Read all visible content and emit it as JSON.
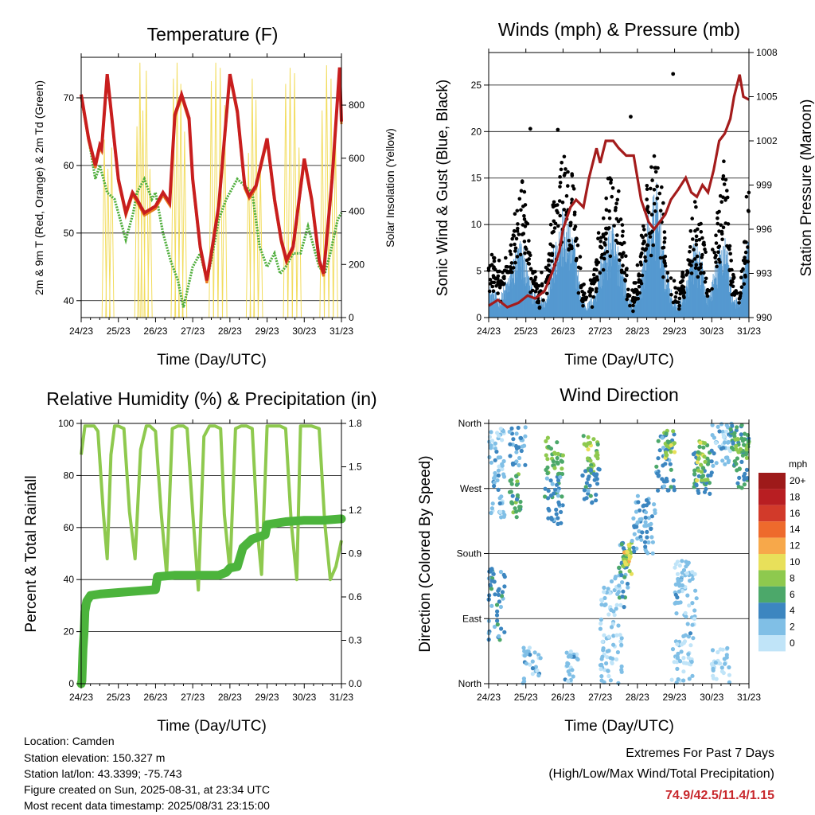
{
  "colors": {
    "temp_2m": "#c81e1e",
    "temp_9m": "#e87a1e",
    "dewpoint": "#4fae3c",
    "solar": "#f2dc5c",
    "wind": "#5599d0",
    "gust": "#000000",
    "pressure": "#a41c1c",
    "rh": "#8ec94e",
    "precip": "#4cb43c",
    "extremes_value": "#c8282d"
  },
  "footer": {
    "location": "Location: Camden",
    "elevation": "Station elevation: 150.327 m",
    "latlon": "Station lat/lon: 43.3399; -75.743",
    "created": "Figure created on Sun, 2025-08-31, at 23:34 UTC",
    "recent": "Most recent data timestamp: 2025/08/31 23:15:00"
  },
  "extremes": {
    "title": "Extremes For Past 7 Days",
    "subtitle": "(High/Low/Max Wind/Total Precipitation)",
    "values": "74.9/42.5/11.4/1.15"
  },
  "chart_data": [
    {
      "id": "temperature",
      "type": "line",
      "title": "Temperature (F)",
      "xlabel": "Time (Day/UTC)",
      "ylabel": "2m & 9m T (Red, Orange) & 2m Td (Green)",
      "y2label": "Solar Insolation (Yellow)",
      "x_ticks": [
        "24/23",
        "25/23",
        "26/23",
        "27/23",
        "28/23",
        "29/23",
        "30/23",
        "31/23"
      ],
      "xlim": [
        0,
        7
      ],
      "ylim": [
        37.5,
        76
      ],
      "y_ticks": [
        40,
        50,
        60,
        70
      ],
      "y2lim": [
        0,
        980
      ],
      "y2_ticks": [
        0,
        200,
        400,
        600,
        800
      ],
      "grid": true,
      "series": [
        {
          "key": "temp_2m",
          "x": [
            0,
            0.2,
            0.38,
            0.5,
            0.55,
            0.7,
            1.0,
            1.2,
            1.38,
            1.5,
            1.7,
            2.0,
            2.2,
            2.38,
            2.52,
            2.7,
            2.9,
            3.0,
            3.2,
            3.38,
            3.5,
            3.7,
            4.0,
            4.2,
            4.4,
            4.52,
            4.7,
            5.0,
            5.2,
            5.38,
            5.52,
            5.7,
            6.0,
            6.2,
            6.4,
            6.52,
            6.75,
            6.95,
            7.0
          ],
          "values": [
            70.5,
            64,
            60,
            63,
            62.5,
            73.5,
            58,
            53,
            56,
            55,
            53,
            54,
            56,
            54.5,
            67.5,
            70.5,
            67,
            58,
            48,
            43,
            47,
            54,
            73.5,
            68,
            57,
            55.5,
            57,
            64,
            55,
            49,
            46,
            48,
            61,
            55,
            46,
            44,
            58,
            74.5,
            66.5
          ]
        },
        {
          "key": "dewpoint",
          "x": [
            0,
            0.2,
            0.38,
            0.5,
            0.7,
            0.9,
            1.0,
            1.2,
            1.4,
            1.5,
            1.7,
            1.9,
            2.0,
            2.2,
            2.4,
            2.6,
            2.75,
            3.0,
            3.2,
            3.38,
            3.5,
            3.7,
            3.9,
            4.2,
            4.4,
            4.6,
            4.8,
            5.0,
            5.2,
            5.35,
            5.5,
            5.7,
            5.9,
            6.1,
            6.4,
            6.55,
            6.7,
            6.9,
            7.0
          ],
          "values": [
            70,
            64,
            58,
            60,
            56,
            55,
            53,
            49,
            53,
            56,
            58,
            55,
            56,
            50,
            46,
            43,
            39,
            45,
            47,
            43,
            46,
            52,
            55,
            58,
            57,
            56,
            48,
            45,
            47,
            44,
            45,
            47,
            47,
            51,
            45,
            44,
            47,
            52,
            53
          ]
        }
      ],
      "solar_peaks": [
        {
          "center": 0.62,
          "peak": 670
        },
        {
          "center": 0.72,
          "peak": 560
        },
        {
          "center": 0.82,
          "peak": 640
        },
        {
          "center": 1.5,
          "peak": 720
        },
        {
          "center": 1.58,
          "peak": 960
        },
        {
          "center": 1.66,
          "peak": 780
        },
        {
          "center": 1.75,
          "peak": 930
        },
        {
          "center": 1.85,
          "peak": 560
        },
        {
          "center": 2.48,
          "peak": 900
        },
        {
          "center": 2.58,
          "peak": 960
        },
        {
          "center": 2.68,
          "peak": 880
        },
        {
          "center": 2.78,
          "peak": 700
        },
        {
          "center": 3.5,
          "peak": 890
        },
        {
          "center": 3.62,
          "peak": 960
        },
        {
          "center": 3.74,
          "peak": 940
        },
        {
          "center": 3.86,
          "peak": 800
        },
        {
          "center": 4.5,
          "peak": 620
        },
        {
          "center": 4.6,
          "peak": 900
        },
        {
          "center": 4.7,
          "peak": 820
        },
        {
          "center": 4.82,
          "peak": 560
        },
        {
          "center": 5.5,
          "peak": 880
        },
        {
          "center": 5.62,
          "peak": 940
        },
        {
          "center": 5.74,
          "peak": 920
        },
        {
          "center": 5.86,
          "peak": 640
        },
        {
          "center": 6.48,
          "peak": 780
        },
        {
          "center": 6.6,
          "peak": 950
        },
        {
          "center": 6.72,
          "peak": 900
        },
        {
          "center": 6.84,
          "peak": 700
        }
      ]
    },
    {
      "id": "winds",
      "type": "scatter",
      "title": "Winds (mph) & Pressure (mb)",
      "xlabel": "Time (Day/UTC)",
      "ylabel": "Sonic Wind & Gust (Blue, Black)",
      "y2label": "Station Pressure (Maroon)",
      "x_ticks": [
        "24/23",
        "25/23",
        "26/23",
        "27/23",
        "28/23",
        "29/23",
        "30/23",
        "31/23"
      ],
      "xlim": [
        0,
        7
      ],
      "ylim": [
        0,
        28.5
      ],
      "y_ticks": [
        0,
        5,
        10,
        15,
        20,
        25
      ],
      "y2lim": [
        990,
        1008
      ],
      "y2_ticks": [
        990,
        993,
        996,
        999,
        1002,
        1005,
        1008
      ],
      "grid": true,
      "wind_profile": {
        "x": [
          0,
          0.3,
          0.5,
          0.7,
          0.9,
          1.1,
          1.3,
          1.55,
          1.75,
          2.0,
          2.3,
          2.5,
          2.65,
          2.85,
          3.05,
          3.3,
          3.55,
          3.75,
          3.9,
          4.1,
          4.3,
          4.55,
          4.75,
          4.95,
          5.1,
          5.35,
          5.55,
          5.75,
          5.9,
          6.1,
          6.35,
          6.55,
          6.75,
          6.9,
          7.0
        ],
        "values": [
          2.5,
          1.5,
          3,
          5,
          6,
          3,
          1.5,
          1.5,
          6,
          8,
          6,
          1.5,
          1,
          2,
          5,
          7,
          5,
          1.5,
          1,
          3,
          8,
          10,
          4,
          1.5,
          1,
          3,
          6,
          4,
          1.5,
          4,
          7,
          2,
          1,
          5,
          6
        ]
      },
      "gust_profile": {
        "x": [
          0,
          0.3,
          0.5,
          0.7,
          0.9,
          1.1,
          1.3,
          1.55,
          1.75,
          2.0,
          2.3,
          2.5,
          2.65,
          2.85,
          3.05,
          3.3,
          3.55,
          3.75,
          3.9,
          4.1,
          4.3,
          4.55,
          4.75,
          4.95,
          5.1,
          5.35,
          5.55,
          5.75,
          5.9,
          6.1,
          6.35,
          6.55,
          6.75,
          6.9,
          7.0
        ],
        "values": [
          6,
          4,
          5,
          9,
          12,
          6,
          3,
          4,
          10,
          14,
          11,
          3,
          2,
          4,
          9,
          13,
          10,
          3,
          2,
          6,
          13,
          15,
          7,
          3,
          2,
          5,
          10,
          8,
          3,
          8,
          14,
          4,
          2,
          9,
          10
        ]
      },
      "gust_outliers": [
        {
          "x": 1.12,
          "y": 20.3
        },
        {
          "x": 1.86,
          "y": 20.2
        },
        {
          "x": 3.82,
          "y": 21.6
        },
        {
          "x": 4.96,
          "y": 26.2
        }
      ],
      "pressure": {
        "x": [
          0,
          0.25,
          0.5,
          0.8,
          1.05,
          1.25,
          1.5,
          1.7,
          1.9,
          2.0,
          2.2,
          2.35,
          2.55,
          2.7,
          2.9,
          3.0,
          3.15,
          3.35,
          3.5,
          3.7,
          3.9,
          4.1,
          4.3,
          4.45,
          4.6,
          4.75,
          4.9,
          5.1,
          5.3,
          5.45,
          5.6,
          5.75,
          5.9,
          6.05,
          6.2,
          6.35,
          6.5,
          6.6,
          6.75,
          6.85,
          7.0
        ],
        "values": [
          990.8,
          991.2,
          990.7,
          991,
          991.5,
          991.3,
          991.8,
          993,
          994.5,
          996,
          997.5,
          998,
          997.5,
          999.5,
          1001.5,
          1000.5,
          1002,
          1002,
          1001.5,
          1001,
          1001,
          998,
          996.5,
          996,
          996.5,
          997,
          998,
          998.7,
          999.5,
          998.5,
          998.2,
          999,
          998.5,
          1000,
          1002,
          1002.5,
          1003.5,
          1005,
          1006.5,
          1005,
          1004.8
        ]
      }
    },
    {
      "id": "humidity",
      "type": "line",
      "title": "Relative Humidity (%) & Precipitation (in)",
      "xlabel": "Time (Day/UTC)",
      "ylabel": "Percent & Total Rainfall",
      "x_ticks": [
        "24/23",
        "25/23",
        "26/23",
        "27/23",
        "28/23",
        "29/23",
        "30/23",
        "31/23"
      ],
      "xlim": [
        0,
        7
      ],
      "ylim": [
        0,
        100
      ],
      "y_ticks": [
        0,
        20,
        40,
        60,
        80,
        100
      ],
      "y2lim": [
        0,
        1.8
      ],
      "y2_ticks": [
        "0.0",
        "0.3",
        "0.6",
        "0.9",
        "1.2",
        "1.5",
        "1.8"
      ],
      "grid": true,
      "series": [
        {
          "key": "rh",
          "name": "",
          "x": [
            0,
            0.1,
            0.2,
            0.35,
            0.45,
            0.6,
            0.7,
            0.8,
            0.9,
            1.0,
            1.15,
            1.3,
            1.45,
            1.6,
            1.75,
            1.85,
            2.0,
            2.15,
            2.3,
            2.45,
            2.6,
            2.75,
            2.85,
            3.0,
            3.15,
            3.3,
            3.45,
            3.6,
            3.75,
            3.85,
            4.0,
            4.15,
            4.3,
            4.45,
            4.6,
            4.75,
            4.85,
            5.0,
            5.2,
            5.35,
            5.5,
            5.65,
            5.8,
            5.9,
            6.0,
            6.2,
            6.4,
            6.55,
            6.7,
            6.85,
            7.0
          ],
          "values": [
            88,
            99,
            99,
            99,
            97,
            65,
            48,
            88,
            99,
            99,
            98,
            66,
            48,
            90,
            99,
            99,
            97,
            66,
            42,
            98,
            99,
            99,
            98,
            66,
            36,
            95,
            99,
            99,
            98,
            65,
            43,
            98,
            99,
            99,
            98,
            57,
            42,
            99,
            99,
            99,
            98,
            62,
            40,
            99,
            99,
            99,
            98,
            62,
            40,
            45,
            55
          ]
        },
        {
          "key": "precip",
          "name": "",
          "x": [
            0,
            0.02,
            0.05,
            0.08,
            0.1,
            0.15,
            0.25,
            0.5,
            1.0,
            1.5,
            2.0,
            2.05,
            2.5,
            3.0,
            3.5,
            3.7,
            3.9,
            4.0,
            4.2,
            4.35,
            4.6,
            4.95,
            5.0,
            5.5,
            6.0,
            6.5,
            7.0
          ],
          "values": [
            0,
            0.02,
            0.24,
            0.36,
            0.5,
            0.57,
            0.61,
            0.62,
            0.63,
            0.64,
            0.65,
            0.74,
            0.75,
            0.75,
            0.75,
            0.75,
            0.77,
            0.8,
            0.81,
            0.94,
            1.0,
            1.03,
            1.1,
            1.12,
            1.13,
            1.13,
            1.14
          ]
        }
      ]
    },
    {
      "id": "direction",
      "type": "scatter",
      "title": "Wind Direction",
      "xlabel": "Time (Day/UTC)",
      "ylabel": "Direction (Colored By Speed)",
      "x_ticks": [
        "24/23",
        "25/23",
        "26/23",
        "27/23",
        "28/23",
        "29/23",
        "30/23",
        "31/23"
      ],
      "xlim": [
        0,
        7
      ],
      "ylim": [
        0,
        360
      ],
      "y_ticks": [
        "North",
        "East",
        "South",
        "West",
        "North"
      ],
      "grid": true,
      "colorbar": {
        "title": "mph",
        "labels": [
          "20+",
          "18",
          "16",
          "14",
          "12",
          "10",
          "8",
          "6",
          "4",
          "2",
          "0"
        ],
        "colors": [
          "#9e1a1a",
          "#b81e22",
          "#d23a2a",
          "#ee6a2c",
          "#f7a84a",
          "#e8e05a",
          "#8ec94e",
          "#4ca86a",
          "#3c86c0",
          "#80bfe6",
          "#c0e4f8"
        ]
      },
      "clusters": [
        {
          "x0": 0.0,
          "x1": 0.45,
          "d0": 60,
          "d1": 160,
          "speed": 4
        },
        {
          "x0": 0.0,
          "x1": 0.45,
          "d0": 230,
          "d1": 360,
          "speed": 2
        },
        {
          "x0": 0.55,
          "x1": 0.9,
          "d0": 230,
          "d1": 290,
          "speed": 6
        },
        {
          "x0": 0.55,
          "x1": 1.0,
          "d0": 300,
          "d1": 355,
          "speed": 3
        },
        {
          "x0": 0.9,
          "x1": 1.4,
          "d0": 0,
          "d1": 50,
          "speed": 2
        },
        {
          "x0": 1.5,
          "x1": 2.0,
          "d0": 290,
          "d1": 345,
          "speed": 7
        },
        {
          "x0": 1.5,
          "x1": 2.0,
          "d0": 220,
          "d1": 290,
          "speed": 4
        },
        {
          "x0": 2.0,
          "x1": 2.4,
          "d0": 0,
          "d1": 45,
          "speed": 2
        },
        {
          "x0": 2.55,
          "x1": 2.95,
          "d0": 290,
          "d1": 345,
          "speed": 8
        },
        {
          "x0": 2.5,
          "x1": 3.0,
          "d0": 250,
          "d1": 300,
          "speed": 4
        },
        {
          "x0": 3.0,
          "x1": 3.6,
          "d0": 0,
          "d1": 150,
          "speed": 1
        },
        {
          "x0": 3.5,
          "x1": 3.75,
          "d0": 100,
          "d1": 200,
          "speed": 4
        },
        {
          "x0": 3.6,
          "x1": 3.85,
          "d0": 150,
          "d1": 195,
          "speed": 8
        },
        {
          "x0": 3.65,
          "x1": 3.8,
          "d0": 165,
          "d1": 185,
          "speed": 10
        },
        {
          "x0": 3.8,
          "x1": 4.5,
          "d0": 180,
          "d1": 260,
          "speed": 3
        },
        {
          "x0": 4.5,
          "x1": 5.0,
          "d0": 260,
          "d1": 345,
          "speed": 4
        },
        {
          "x0": 4.7,
          "x1": 5.0,
          "d0": 310,
          "d1": 350,
          "speed": 8
        },
        {
          "x0": 4.9,
          "x1": 5.5,
          "d0": 0,
          "d1": 60,
          "speed": 1
        },
        {
          "x0": 5.0,
          "x1": 5.6,
          "d0": 60,
          "d1": 170,
          "speed": 2
        },
        {
          "x0": 5.5,
          "x1": 6.0,
          "d0": 260,
          "d1": 330,
          "speed": 5
        },
        {
          "x0": 5.6,
          "x1": 5.9,
          "d0": 280,
          "d1": 340,
          "speed": 8
        },
        {
          "x0": 6.0,
          "x1": 6.5,
          "d0": 0,
          "d1": 50,
          "speed": 1
        },
        {
          "x0": 6.0,
          "x1": 6.6,
          "d0": 300,
          "d1": 360,
          "speed": 2
        },
        {
          "x0": 6.5,
          "x1": 7.0,
          "d0": 270,
          "d1": 360,
          "speed": 5
        },
        {
          "x0": 6.6,
          "x1": 7.0,
          "d0": 310,
          "d1": 345,
          "speed": 7
        }
      ]
    }
  ]
}
